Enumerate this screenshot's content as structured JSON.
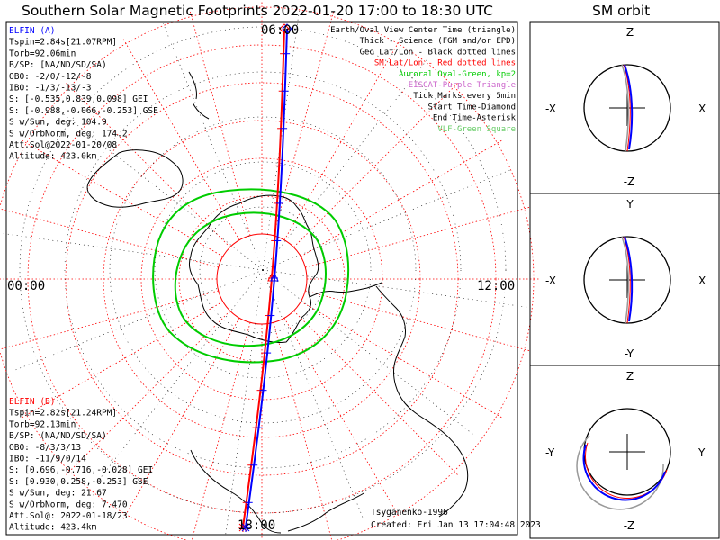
{
  "title": "Southern Solar Magnetic Footprints 2022-01-20 17:00 to 18:30 UTC",
  "side_title": "SM orbit",
  "clock_labels": {
    "top": "06:00",
    "bottom": "18:00",
    "left": "00:00",
    "right": "12:00"
  },
  "legend": [
    {
      "text": "Earth/Oval View Center Time (triangle)",
      "color": "#000000"
    },
    {
      "text": "Thick - Science (FGM and/or EPD)",
      "color": "#000000"
    },
    {
      "text": "Geo Lat/Lon - Black dotted lines",
      "color": "#000000"
    },
    {
      "text": "SM Lat/Lon - Red dotted lines",
      "color": "#ff0000"
    },
    {
      "text": "Auroral Oval-Green, kp=2",
      "color": "#00cc00"
    },
    {
      "text": "EISCAT-Purple Triangle",
      "color": "#cc66cc"
    },
    {
      "text": "Tick Marks every 5min",
      "color": "#000000"
    },
    {
      "text": "Start Time-Diamond",
      "color": "#000000"
    },
    {
      "text": "End Time-Asterisk",
      "color": "#000000"
    },
    {
      "text": "VLF-Green Square",
      "color": "#66cc66"
    }
  ],
  "elfin_a": {
    "header": "ELFIN (A)",
    "color": "#0000ff",
    "lines": [
      "Tspin=2.84s[21.07RPM]",
      "Torb=92.06min",
      "B/SP: [NA/ND/SD/SA)",
      "OBO: -2/0/-12/-8",
      "IBO: -1/3/-13/-3",
      "S: [-0.535,0.839,0.098] GEI",
      "S: [-0.988,-0.066,-0.253] GSE",
      "S w/Sun, deg: 104.9",
      "S w/OrbNorm, deg: 174.2",
      "Att.Sol@2022-01-20/08",
      "Altitude: 423.0km"
    ]
  },
  "elfin_b": {
    "header": "ELFIN (B)",
    "color": "#ff0000",
    "lines": [
      "Tspin=2.82s[21.24RPM]",
      "Torb=92.13min",
      "B/SP: (NA/ND/SD/SA)",
      "OBO: -8/3/3/13",
      "IBO: -11/9/0/14",
      "S: [0.696,-0.716,-0.028] GEI",
      "S: [0.930,0.258,-0.253] GSE",
      "S w/Sun, deg: 21.67",
      "S w/OrbNorm, deg: 7.470",
      "Att.Sol@: 2022-01-18/23",
      "Altitude: 423.4km"
    ]
  },
  "credits": {
    "author": "Tsyganenko-1996",
    "created": "Created: Fri Jan 13 17:04:48 2023"
  },
  "orbit_panels": [
    {
      "top": "Z",
      "bottom": "-Z",
      "left": "-X",
      "right": "X"
    },
    {
      "top": "Y",
      "bottom": "-Y",
      "left": "-X",
      "right": "X"
    },
    {
      "top": "Z",
      "bottom": "-Z",
      "left": "-Y",
      "right": "Y"
    }
  ],
  "colors": {
    "elfin_a": "#0000ff",
    "elfin_b": "#ff0000",
    "sm_grid": "#ff0000",
    "geo_grid": "#000000",
    "auroral_oval": "#00cc00",
    "eiscat": "#cc66cc",
    "vlf": "#66cc66"
  }
}
